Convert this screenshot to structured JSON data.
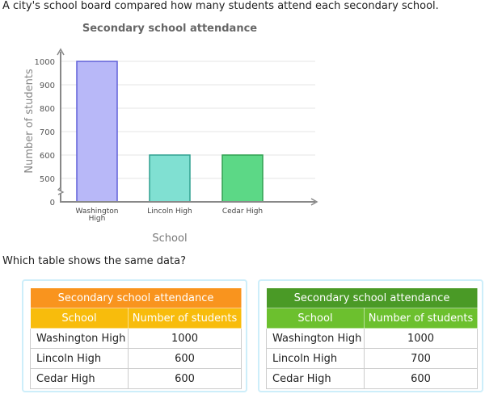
{
  "question": "A city's school board compared how many students attend each secondary school.",
  "prompt": "Which table shows the same data?",
  "chart_data": {
    "type": "bar",
    "title": "Secondary school attendance",
    "xlabel": "School",
    "ylabel": "Number of students",
    "categories": [
      "Washington High",
      "Lincoln High",
      "Cedar High"
    ],
    "category_lines": [
      [
        "Washington",
        "High"
      ],
      [
        "Lincoln High"
      ],
      [
        "Cedar High"
      ]
    ],
    "values": [
      1000,
      600,
      600
    ],
    "colors": [
      "#b8b8f8",
      "#80e0d2",
      "#5cd886"
    ],
    "stroke_colors": [
      "#6060d8",
      "#30a090",
      "#30a050"
    ],
    "yticks": [
      0,
      500,
      600,
      700,
      800,
      900,
      1000
    ],
    "ylim": [
      0,
      1000
    ],
    "axis_break": true,
    "grid": true
  },
  "options": [
    {
      "title": "Secondary school attendance",
      "headers": [
        "School",
        "Number of students"
      ],
      "rows": [
        [
          "Washington High",
          "1000"
        ],
        [
          "Lincoln High",
          "600"
        ],
        [
          "Cedar High",
          "600"
        ]
      ],
      "title_color": "#f9941e",
      "header_color": "#f8bc0c"
    },
    {
      "title": "Secondary school attendance",
      "headers": [
        "School",
        "Number of students"
      ],
      "rows": [
        [
          "Washington High",
          "1000"
        ],
        [
          "Lincoln High",
          "700"
        ],
        [
          "Cedar High",
          "600"
        ]
      ],
      "title_color": "#4a9a26",
      "header_color": "#6cc02e"
    }
  ]
}
